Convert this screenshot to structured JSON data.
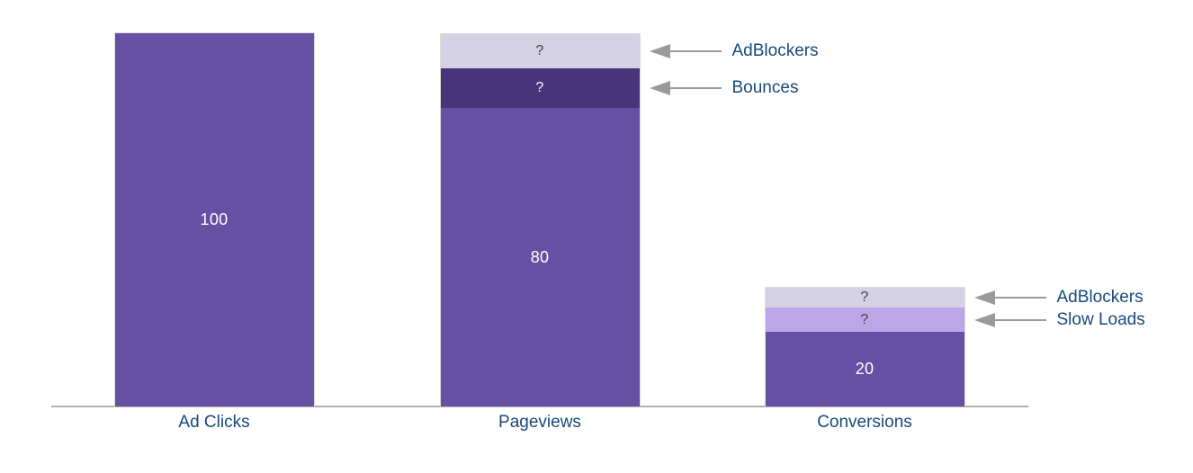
{
  "chart_data": {
    "type": "bar",
    "subtype": "stacked_funnel_with_annotations",
    "title": "",
    "categories": [
      "Ad Clicks",
      "Pageviews",
      "Conversions"
    ],
    "ylim": [
      0,
      100
    ],
    "grid": false,
    "legend": "none",
    "background": "#ffffff",
    "axis": {
      "line_color": "#b0b0b0"
    },
    "category_label_color": "#17497A",
    "annotation_label_color": "#17497A",
    "arrow_color": "#9a9a9a",
    "bars": [
      {
        "category": "Ad Clicks",
        "x_center": 238,
        "segments": [
          {
            "name": "ad-clicks-value",
            "label": "100",
            "value": 100,
            "units": 100,
            "color": "#6550A4",
            "text_color": "#ffffff"
          }
        ]
      },
      {
        "category": "Pageviews",
        "x_center": 600,
        "segments": [
          {
            "name": "pageviews-value",
            "label": "80",
            "value": 80,
            "units": 80,
            "color": "#6550A4",
            "text_color": "#ffffff"
          },
          {
            "name": "bounces",
            "label": "?",
            "value": "?",
            "units": 10.6,
            "color": "#473579",
            "text_color": "#ffffff",
            "annotation": "Bounces"
          },
          {
            "name": "adblockers",
            "label": "?",
            "value": "?",
            "units": 9.2,
            "color": "#D5D1E4",
            "text_color": "#404040",
            "annotation": "AdBlockers"
          }
        ]
      },
      {
        "category": "Conversions",
        "x_center": 961,
        "segments": [
          {
            "name": "conversions-value",
            "label": "20",
            "value": 20,
            "units": 20,
            "color": "#6550A4",
            "text_color": "#ffffff"
          },
          {
            "name": "slow-loads",
            "label": "?",
            "value": "?",
            "units": 6.5,
            "color": "#BCA6E8",
            "text_color": "#404040",
            "annotation": "Slow Loads"
          },
          {
            "name": "adblockers",
            "label": "?",
            "value": "?",
            "units": 5.3,
            "color": "#D5D1E4",
            "text_color": "#404040",
            "annotation": "AdBlockers"
          }
        ]
      }
    ]
  }
}
